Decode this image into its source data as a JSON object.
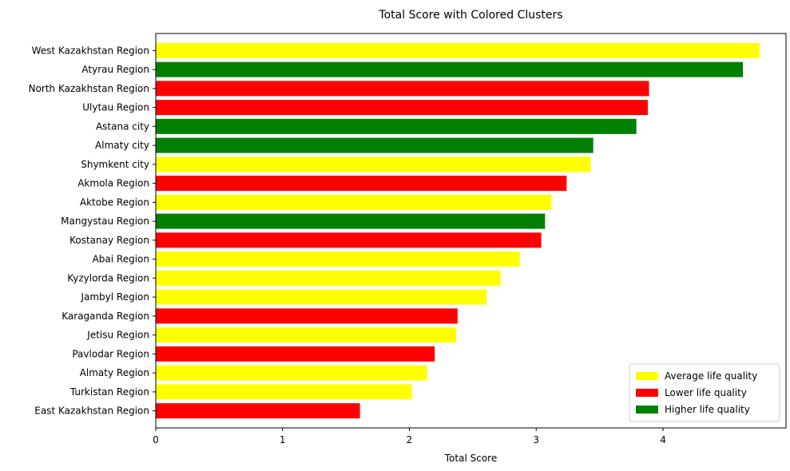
{
  "chart_data": {
    "type": "bar",
    "orientation": "horizontal",
    "title": "Total Score with Colored Clusters",
    "xlabel": "Total Score",
    "ylabel": "",
    "xlim": [
      0,
      4.97
    ],
    "xticks": [
      "0",
      "1",
      "2",
      "3",
      "4"
    ],
    "grid": false,
    "legend_position": "bottom-right",
    "clusters": [
      {
        "name": "Average life quality",
        "color": "#ffff00"
      },
      {
        "name": "Lower life quality",
        "color": "#ff0000"
      },
      {
        "name": "Higher life quality",
        "color": "#008000"
      }
    ],
    "categories": [
      "West Kazakhstan Region",
      "Atyrau Region",
      "North Kazakhstan Region",
      "Ulytau Region",
      "Astana city",
      "Almaty city",
      "Shymkent city",
      "Akmola Region",
      "Aktobe Region",
      "Mangystau Region",
      "Kostanay Region",
      "Abai Region",
      "Kyzylorda Region",
      "Jambyl Region",
      "Karaganda Region",
      "Jetisu Region",
      "Pavlodar Region",
      "Almaty Region",
      "Turkistan Region",
      "East Kazakhstan Region"
    ],
    "values": [
      4.76,
      4.63,
      3.89,
      3.88,
      3.79,
      3.45,
      3.43,
      3.24,
      3.12,
      3.07,
      3.04,
      2.87,
      2.72,
      2.61,
      2.38,
      2.37,
      2.2,
      2.14,
      2.02,
      1.61
    ],
    "cluster_index": [
      0,
      2,
      1,
      1,
      2,
      2,
      0,
      1,
      0,
      2,
      1,
      0,
      0,
      0,
      1,
      0,
      1,
      0,
      0,
      1
    ]
  }
}
